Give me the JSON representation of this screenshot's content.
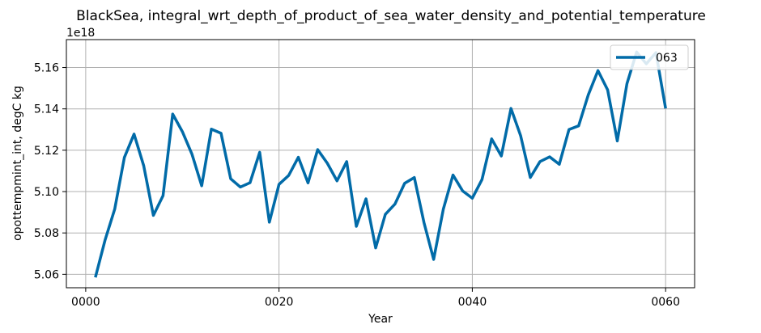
{
  "chart_data": {
    "type": "line",
    "title": "BlackSea, integral_wrt_depth_of_product_of_sea_water_density_and_potential_temperature",
    "xlabel": "Year",
    "ylabel": "opottempmint_int, degC kg",
    "offset_text": "1e18",
    "y_multiplier": 1e+18,
    "xlim": [
      -2,
      63
    ],
    "ylim": [
      5.0535,
      5.1735
    ],
    "x_ticks": [
      0,
      20,
      40,
      60
    ],
    "x_tick_labels": [
      "0000",
      "0020",
      "0040",
      "0060"
    ],
    "y_ticks": [
      5.06,
      5.08,
      5.1,
      5.12,
      5.14,
      5.16
    ],
    "y_tick_labels": [
      "5.06",
      "5.08",
      "5.10",
      "5.12",
      "5.14",
      "5.16"
    ],
    "grid": true,
    "legend_position": "upper-right",
    "series": [
      {
        "name": "063",
        "color": "#016ba8",
        "x": [
          1,
          2,
          3,
          4,
          5,
          6,
          7,
          8,
          9,
          10,
          11,
          12,
          13,
          14,
          15,
          16,
          17,
          18,
          19,
          20,
          21,
          22,
          23,
          24,
          25,
          26,
          27,
          28,
          29,
          30,
          31,
          32,
          33,
          34,
          35,
          36,
          37,
          38,
          39,
          40,
          41,
          42,
          43,
          44,
          45,
          46,
          47,
          48,
          49,
          50,
          51,
          52,
          53,
          54,
          55,
          56,
          57,
          58,
          59,
          60
        ],
        "values": [
          5.0585,
          5.0765,
          5.0915,
          5.1165,
          5.1278,
          5.1125,
          5.0885,
          5.098,
          5.1375,
          5.129,
          5.118,
          5.1028,
          5.1302,
          5.1282,
          5.1062,
          5.1022,
          5.1043,
          5.119,
          5.0852,
          5.1035,
          5.1078,
          5.1166,
          5.1042,
          5.1203,
          5.1137,
          5.1052,
          5.1145,
          5.0832,
          5.0965,
          5.0728,
          5.089,
          5.094,
          5.104,
          5.1068,
          5.085,
          5.0672,
          5.0915,
          5.108,
          5.1003,
          5.0968,
          5.1058,
          5.1255,
          5.1172,
          5.1402,
          5.127,
          5.1068,
          5.1145,
          5.1168,
          5.1132,
          5.13,
          5.1318,
          5.1468,
          5.1585,
          5.1492,
          5.1245,
          5.1522,
          5.1675,
          5.1618,
          5.1672,
          5.1402
        ]
      }
    ]
  }
}
